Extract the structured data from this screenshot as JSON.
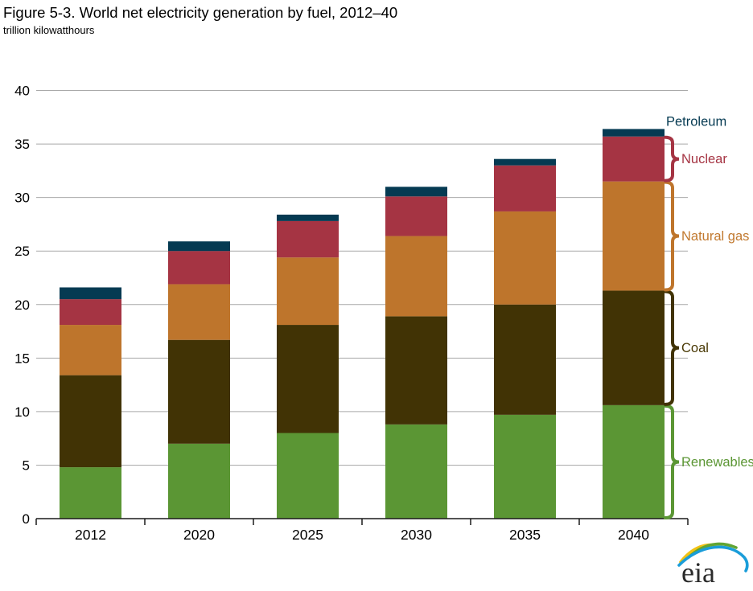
{
  "header": {
    "title": "Figure 5-3. World net electricity generation by fuel, 2012–40",
    "subtitle": "trillion kilowatthours"
  },
  "chart_data": {
    "type": "bar",
    "stacked": true,
    "title": "Figure 5-3. World net electricity generation by fuel, 2012–40",
    "ylabel": "trillion kilowatthours",
    "xlabel": "",
    "ylim": [
      0,
      40
    ],
    "ytick_interval": 5,
    "y_ticks": [
      0,
      5,
      10,
      15,
      20,
      25,
      30,
      35,
      40
    ],
    "grid": true,
    "categories": [
      "2012",
      "2020",
      "2025",
      "2030",
      "2035",
      "2040"
    ],
    "series": [
      {
        "name": "Renewables",
        "color": "#5B9634",
        "values": [
          4.8,
          7.0,
          8.0,
          8.8,
          9.7,
          10.6
        ]
      },
      {
        "name": "Coal",
        "color": "#413305",
        "values": [
          8.6,
          9.7,
          10.1,
          10.1,
          10.3,
          10.7
        ]
      },
      {
        "name": "Natural gas",
        "color": "#BE752C",
        "values": [
          4.7,
          5.2,
          6.3,
          7.5,
          8.7,
          10.2
        ]
      },
      {
        "name": "Nuclear",
        "color": "#A53443",
        "values": [
          2.4,
          3.1,
          3.4,
          3.7,
          4.3,
          4.2
        ]
      },
      {
        "name": "Petroleum",
        "color": "#053A52",
        "values": [
          1.1,
          0.9,
          0.6,
          0.9,
          0.6,
          0.7
        ]
      }
    ],
    "totals": [
      21.6,
      25.9,
      28.4,
      31.0,
      33.6,
      36.4
    ],
    "legend": {
      "position": "right",
      "style": "braces",
      "entries": [
        "Petroleum",
        "Nuclear",
        "Natural gas",
        "Coal",
        "Renewables"
      ]
    }
  },
  "right_labels": [
    {
      "text": "Petroleum",
      "color": "#053A52",
      "brace": false
    },
    {
      "text": "Nuclear",
      "color": "#A53443",
      "brace": true
    },
    {
      "text": "Natural gas",
      "color": "#C1782E",
      "brace": true
    },
    {
      "text": "Coal",
      "color": "#4A3A06",
      "brace": true
    },
    {
      "text": "Renewables",
      "color": "#5B9634",
      "brace": true
    }
  ],
  "axis": {
    "line_color": "#1a1a1a",
    "grid_color": "#A9A9A9",
    "tick_label_color": "#000000"
  },
  "logo": {
    "text": "eia"
  }
}
